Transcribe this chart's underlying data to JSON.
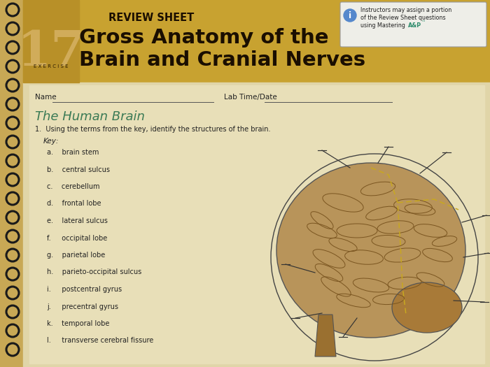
{
  "bg_color": "#c8a855",
  "page_bg": "#e8dfc0",
  "header_bg": "#c8a45a",
  "exercise_num": "17",
  "exercise_label": "EXERCISE",
  "review_sheet_text": "REVIEW SHEET",
  "title_line1": "Gross Anatomy of the",
  "title_line2": "Brain and Cranial Nerves",
  "section_title": "The Human Brain",
  "question_text": "1.  Using the terms from the key, identify the structures of the brain.",
  "key_label": "Key:",
  "key_items": [
    "a.    brain stem",
    "b.    central sulcus",
    "c.    cerebellum",
    "d.    frontal lobe",
    "e.    lateral sulcus",
    "f.     occipital lobe",
    "g.    parietal lobe",
    "h.    parieto-occipital sulcus",
    "i.     postcentral gyrus",
    "j.     precentral gyrus",
    "k.    temporal lobe",
    "l.     transverse cerebral fissure"
  ],
  "name_label": "Name",
  "labtime_label": "Lab Time/Date",
  "spiral_color": "#1a1a1a",
  "text_color": "#222222",
  "teal_color": "#2a8a6a",
  "header_text_color": "#1a0e00",
  "brain_main_color": "#b8945a",
  "brain_dark_color": "#9a7535",
  "brain_line_color": "#6a4515",
  "gyri_color": "#7a5520",
  "dashed_color": "#c8a820",
  "pointer_color": "#333333"
}
